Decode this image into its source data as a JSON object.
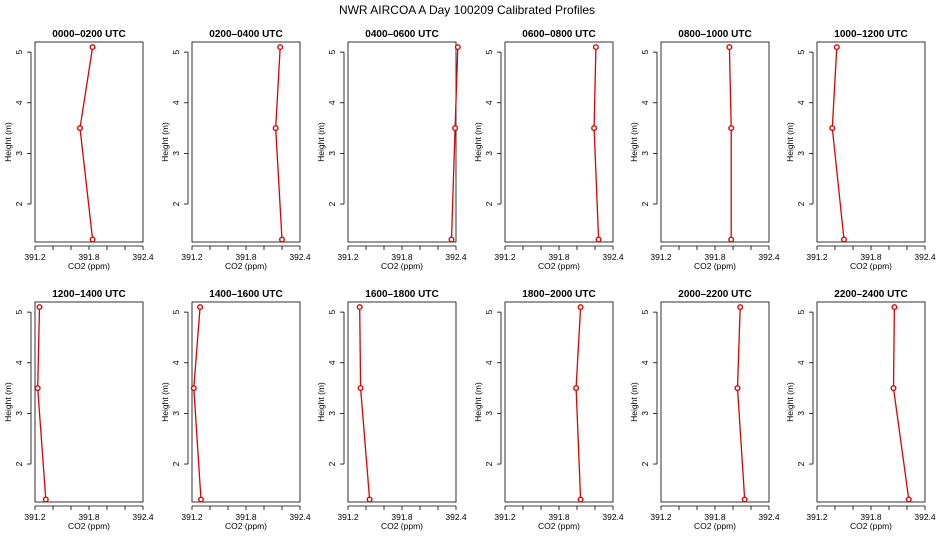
{
  "chart_data": {
    "type": "line",
    "title": "NWR AIRCOA A  Day 100209  Calibrated Profiles",
    "xlabel": "CO2 (ppm)",
    "ylabel": "Height (m)",
    "xlim": [
      391.2,
      392.4
    ],
    "ylim": [
      1.25,
      5.2
    ],
    "x_ticks": [
      391.2,
      391.4,
      391.6,
      391.8,
      392.0,
      392.2,
      392.4
    ],
    "x_tick_labels": [
      "391.2",
      "",
      "",
      "391.8",
      "",
      "",
      "392.4"
    ],
    "y_ticks": [
      2,
      3,
      4,
      5
    ],
    "y_tick_labels": [
      "2",
      "3",
      "4",
      "5"
    ],
    "series_color": "#e00000",
    "heights": [
      5.1,
      3.5,
      1.3
    ],
    "panels": [
      {
        "title": "0000–0200 UTC",
        "co2": [
          391.84,
          391.7,
          391.84
        ]
      },
      {
        "title": "0200–0400 UTC",
        "co2": [
          392.18,
          392.13,
          392.2
        ]
      },
      {
        "title": "0400–0600 UTC",
        "co2": [
          392.42,
          392.39,
          392.35
        ]
      },
      {
        "title": "0600–0800 UTC",
        "co2": [
          392.21,
          392.19,
          392.24
        ]
      },
      {
        "title": "0800–1000 UTC",
        "co2": [
          391.96,
          391.98,
          391.98
        ]
      },
      {
        "title": "1000–1200 UTC",
        "co2": [
          391.42,
          391.37,
          391.5
        ]
      },
      {
        "title": "1200–1400 UTC",
        "co2": [
          391.25,
          391.23,
          391.32
        ]
      },
      {
        "title": "1400–1600 UTC",
        "co2": [
          391.29,
          391.22,
          391.3
        ]
      },
      {
        "title": "1600–1800 UTC",
        "co2": [
          391.33,
          391.34,
          391.44
        ]
      },
      {
        "title": "1800–2000 UTC",
        "co2": [
          392.04,
          391.99,
          392.04
        ]
      },
      {
        "title": "2000–2200 UTC",
        "co2": [
          392.08,
          392.05,
          392.13
        ]
      },
      {
        "title": "2200–2400 UTC",
        "co2": [
          392.06,
          392.05,
          392.22
        ]
      }
    ]
  }
}
